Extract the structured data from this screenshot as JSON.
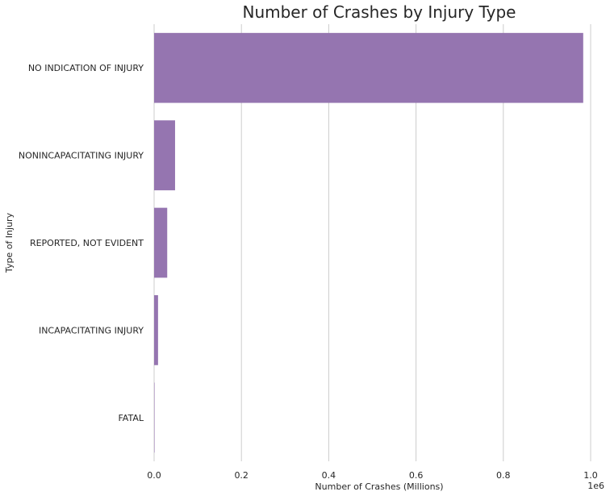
{
  "chart_data": {
    "type": "bar",
    "orientation": "horizontal",
    "title": "Number of Crashes by Injury Type",
    "xlabel": "Number of Crashes (Millions)",
    "ylabel": "Type of Injury",
    "x_offset_label": "1e6",
    "categories": [
      "NO INDICATION OF INJURY",
      "NONINCAPACITATING INJURY",
      "REPORTED, NOT EVIDENT",
      "INCAPACITATING INJURY",
      "FATAL"
    ],
    "values": [
      983000,
      48000,
      30000,
      9000,
      1000
    ],
    "xlim": [
      0,
      1000000
    ],
    "x_ticks": [
      0,
      200000,
      400000,
      600000,
      800000,
      1000000
    ],
    "x_tick_labels": [
      "0.0",
      "0.2",
      "0.4",
      "0.6",
      "0.8",
      "1.0"
    ],
    "grid": "vertical",
    "bar_color": "#9575b0"
  }
}
